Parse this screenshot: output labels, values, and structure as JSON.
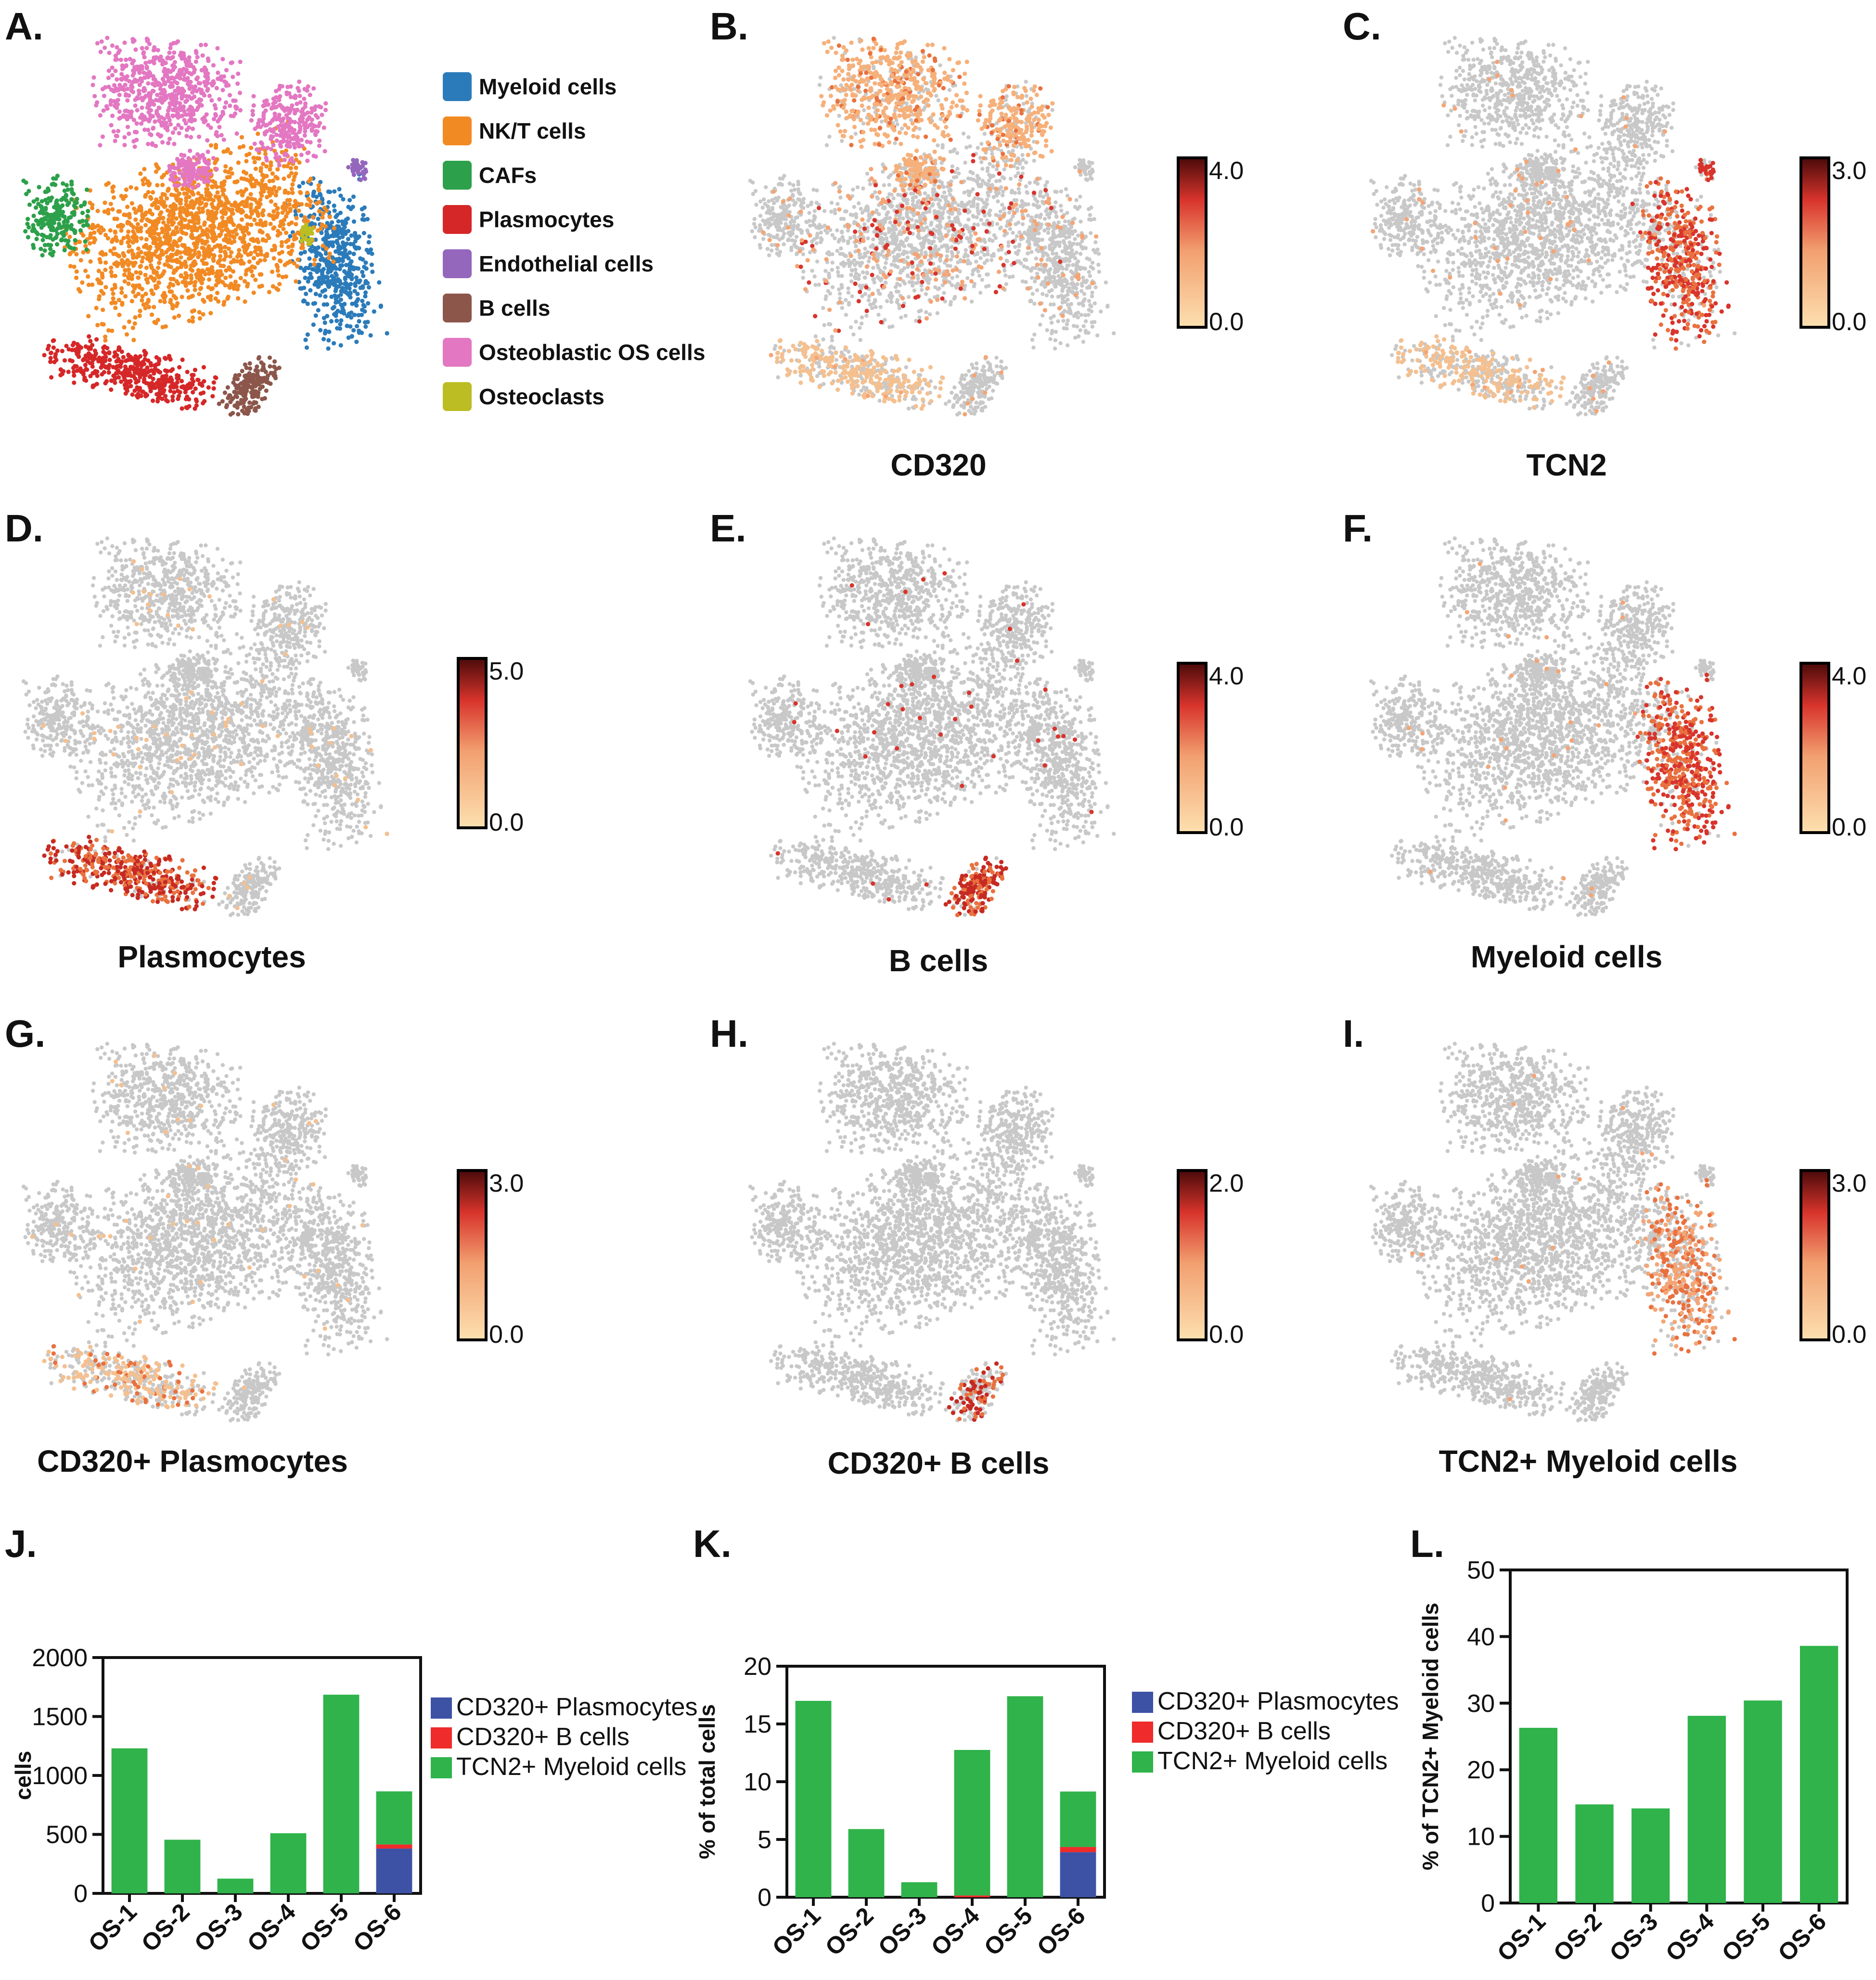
{
  "colors": {
    "grey": "#c8c8c8",
    "scale_low": "#fbd7a3",
    "scale_mid": "#e2553a",
    "scale_high": "#5a0d0d",
    "green": "#2fb34a",
    "red": "#ef2b2b",
    "blue": "#3d52a4"
  },
  "panels": [
    {
      "letter": "A."
    },
    {
      "letter": "B.",
      "title": "CD320"
    },
    {
      "letter": "C.",
      "title": "TCN2"
    },
    {
      "letter": "D.",
      "title": "Plasmocytes"
    },
    {
      "letter": "E.",
      "title": "B cells"
    },
    {
      "letter": "F.",
      "title": "Myeloid cells"
    },
    {
      "letter": "G.",
      "title": "CD320+ Plasmocytes"
    },
    {
      "letter": "H.",
      "title": "CD320+ B cells"
    },
    {
      "letter": "I.",
      "title": "TCN2+ Myeloid cells"
    },
    {
      "letter": "J."
    },
    {
      "letter": "K."
    },
    {
      "letter": "L."
    }
  ],
  "cluster_legend": [
    {
      "label": "Myeloid cells",
      "color": "#2b7bba"
    },
    {
      "label": "NK/T cells",
      "color": "#f28a24"
    },
    {
      "label": "CAFs",
      "color": "#2ca04a"
    },
    {
      "label": "Plasmocytes",
      "color": "#d62728"
    },
    {
      "label": "Endothelial cells",
      "color": "#9467bd"
    },
    {
      "label": "B cells",
      "color": "#8c564b"
    },
    {
      "label": "Osteoblastic OS cells",
      "color": "#e377c2"
    },
    {
      "label": "Osteoclasts",
      "color": "#bcbd22"
    }
  ],
  "color_scales": [
    {
      "panel": "B",
      "max": "4.0",
      "min": "0.0"
    },
    {
      "panel": "C",
      "max": "3.0",
      "min": "0.0"
    },
    {
      "panel": "D",
      "max": "5.0",
      "min": "0.0"
    },
    {
      "panel": "E",
      "max": "4.0",
      "min": "0.0"
    },
    {
      "panel": "F",
      "max": "4.0",
      "min": "0.0"
    },
    {
      "panel": "G",
      "max": "3.0",
      "min": "0.0"
    },
    {
      "panel": "H",
      "max": "2.0",
      "min": "0.0"
    },
    {
      "panel": "I",
      "max": "3.0",
      "min": "0.0"
    }
  ],
  "chart_data": [
    {
      "panel": "J",
      "type": "bar",
      "stacked": true,
      "categories": [
        "OS-1",
        "OS-2",
        "OS-3",
        "OS-4",
        "OS-5",
        "OS-6"
      ],
      "ylabel": "cells",
      "ylim": [
        0,
        2000
      ],
      "yticks": [
        "0",
        "500",
        "1000",
        "1500",
        "2000"
      ],
      "series": [
        {
          "name": "CD320+ Plasmocytes",
          "color": "#3d52a4",
          "values": [
            0,
            0,
            0,
            0,
            0,
            380
          ]
        },
        {
          "name": "CD320+ B cells",
          "color": "#ef2b2b",
          "values": [
            0,
            0,
            0,
            0,
            0,
            35
          ]
        },
        {
          "name": "TCN2+ Myeloid cells",
          "color": "#2fb34a",
          "values": [
            1230,
            455,
            125,
            510,
            1685,
            450
          ]
        }
      ]
    },
    {
      "panel": "K",
      "type": "bar",
      "stacked": true,
      "categories": [
        "OS-1",
        "OS-2",
        "OS-3",
        "OS-4",
        "OS-5",
        "OS-6"
      ],
      "ylabel": "% of total cells",
      "ylim": [
        0,
        20
      ],
      "yticks": [
        "0",
        "5",
        "10",
        "15",
        "20"
      ],
      "series": [
        {
          "name": "CD320+ Plasmocytes",
          "color": "#3d52a4",
          "values": [
            0,
            0,
            0,
            0,
            0,
            3.9
          ]
        },
        {
          "name": "CD320+ B cells",
          "color": "#ef2b2b",
          "values": [
            0,
            0,
            0,
            0.15,
            0,
            0.45
          ]
        },
        {
          "name": "TCN2+ Myeloid cells",
          "color": "#2fb34a",
          "values": [
            17.0,
            5.9,
            1.3,
            12.6,
            17.4,
            4.8
          ]
        }
      ]
    },
    {
      "panel": "L",
      "type": "bar",
      "stacked": false,
      "categories": [
        "OS-1",
        "OS-2",
        "OS-3",
        "OS-4",
        "OS-5",
        "OS-6"
      ],
      "ylabel": "% of TCN2+ Myeloid cells",
      "ylim": [
        0,
        50
      ],
      "yticks": [
        "0",
        "10",
        "20",
        "30",
        "40",
        "50"
      ],
      "series": [
        {
          "name": "TCN2+ Myeloid cells",
          "color": "#2fb34a",
          "values": [
            26.3,
            14.8,
            14.2,
            28.1,
            30.4,
            38.6
          ]
        }
      ]
    }
  ]
}
